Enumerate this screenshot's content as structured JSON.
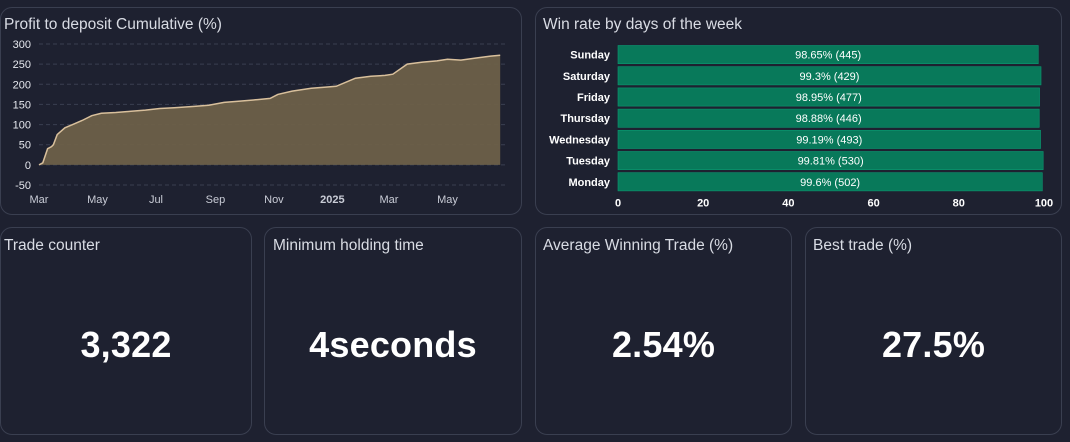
{
  "colors": {
    "background": "#1e2130",
    "card_border": "#3a3f50",
    "area_fill": "#6d6049",
    "area_line": "#d9c09c",
    "bar_fill": "#08795a",
    "bar_stroke": "#0a9a72",
    "text": "#ffffff"
  },
  "cards": {
    "profit": {
      "title": "Profit to deposit Cumulative (%)"
    },
    "winrate": {
      "title": "Win rate by days of the week"
    },
    "trade_counter": {
      "title": "Trade counter",
      "value": "3,322"
    },
    "min_holding": {
      "title": "Minimum holding time",
      "value": "4seconds"
    },
    "avg_winning": {
      "title": "Average Winning Trade (%)",
      "value": "2.54%"
    },
    "best_trade": {
      "title": "Best trade (%)",
      "value": "27.5%"
    }
  },
  "chart_data": [
    {
      "type": "area",
      "title": "Profit to deposit Cumulative (%)",
      "x_ticks": [
        "Mar",
        "May",
        "Jul",
        "Sep",
        "Nov",
        "2025",
        "Mar",
        "May"
      ],
      "y_ticks": [
        300,
        250,
        200,
        150,
        100,
        50,
        0,
        -50
      ],
      "ylim": [
        -50,
        300
      ],
      "x": [
        "2024-03-01",
        "2024-03-05",
        "2024-03-10",
        "2024-03-14",
        "2024-03-16",
        "2024-03-20",
        "2024-03-28",
        "2024-04-05",
        "2024-04-15",
        "2024-04-25",
        "2024-05-05",
        "2024-05-20",
        "2024-06-05",
        "2024-06-20",
        "2024-07-05",
        "2024-07-20",
        "2024-08-10",
        "2024-08-25",
        "2024-09-10",
        "2024-09-25",
        "2024-10-15",
        "2024-10-28",
        "2024-11-05",
        "2024-11-20",
        "2024-12-10",
        "2024-12-25",
        "2025-01-05",
        "2025-01-25",
        "2025-02-10",
        "2025-02-25",
        "2025-03-05",
        "2025-03-20",
        "2025-04-05",
        "2025-04-20",
        "2025-05-01",
        "2025-05-15",
        "2025-05-30",
        "2025-06-15",
        "2025-06-25"
      ],
      "values": [
        0,
        5,
        40,
        45,
        50,
        75,
        92,
        100,
        110,
        122,
        128,
        130,
        133,
        136,
        140,
        142,
        145,
        148,
        155,
        158,
        162,
        165,
        175,
        183,
        190,
        193,
        195,
        215,
        220,
        222,
        225,
        250,
        255,
        258,
        262,
        260,
        265,
        270,
        272
      ],
      "grid": true,
      "legend": "none"
    },
    {
      "type": "bar",
      "orientation": "horizontal",
      "title": "Win rate by days of the week",
      "categories": [
        "Sunday",
        "Saturday",
        "Friday",
        "Thursday",
        "Wednesday",
        "Tuesday",
        "Monday"
      ],
      "values": [
        98.65,
        99.3,
        98.95,
        98.88,
        99.19,
        99.81,
        99.6
      ],
      "labels": [
        "98.65% (445)",
        "99.3% (429)",
        "98.95% (477)",
        "98.88% (446)",
        "99.19% (493)",
        "99.81% (530)",
        "99.6% (502)"
      ],
      "x_ticks": [
        0,
        20,
        40,
        60,
        80,
        100
      ],
      "xlim": [
        0,
        100
      ],
      "grid": false,
      "legend": "none"
    }
  ]
}
